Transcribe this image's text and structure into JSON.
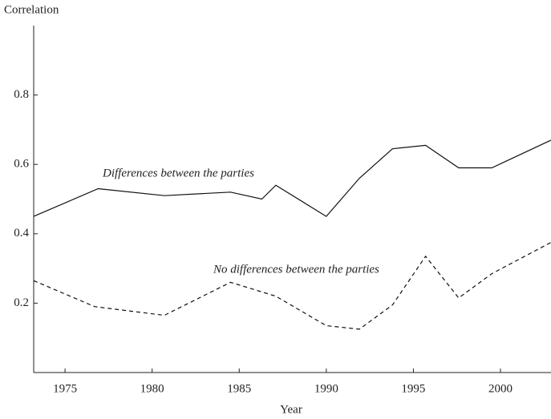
{
  "chart_data": {
    "type": "line",
    "y_label": "Correlation",
    "x_label": "Year",
    "xlim": [
      1973.2,
      2002.9
    ],
    "ylim": [
      0,
      1
    ],
    "xticks": [
      1975,
      1980,
      1985,
      1990,
      1995,
      2000
    ],
    "yticks": [
      0.2,
      0.4,
      0.6,
      0.8
    ],
    "series": [
      {
        "name": "Differences between the parties",
        "color": "#111",
        "dash": "solid",
        "x": [
          1973.2,
          1976.9,
          1980.7,
          1984.5,
          1986.3,
          1987.1,
          1990,
          1991.9,
          1993.8,
          1995.7,
          1997.6,
          1999.5,
          2002.9
        ],
        "values": [
          0.45,
          0.53,
          0.51,
          0.52,
          0.5,
          0.54,
          0.45,
          0.56,
          0.645,
          0.655,
          0.59,
          0.59,
          0.67
        ]
      },
      {
        "name": "No differences between the parties",
        "color": "#111",
        "dash": "dashed",
        "x": [
          1973.2,
          1976.7,
          1980.7,
          1984.5,
          1987.1,
          1990,
          1991.9,
          1993.8,
          1995.7,
          1997.6,
          1999.5,
          2002.9
        ],
        "values": [
          0.265,
          0.19,
          0.165,
          0.26,
          0.22,
          0.135,
          0.125,
          0.195,
          0.335,
          0.215,
          0.285,
          0.375
        ]
      }
    ]
  }
}
